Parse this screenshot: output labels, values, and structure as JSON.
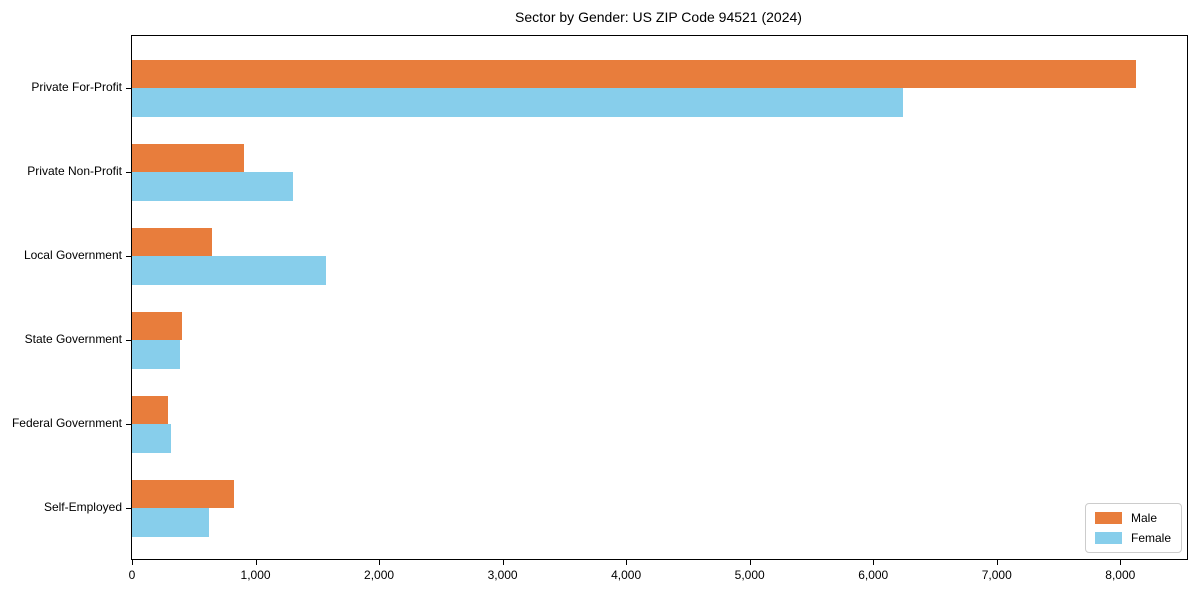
{
  "title": "Sector by Gender: US ZIP Code 94521 (2024)",
  "chart_data": {
    "type": "bar",
    "orientation": "horizontal",
    "title": "Sector by Gender: US ZIP Code 94521 (2024)",
    "categories": [
      "Private For-Profit",
      "Private Non-Profit",
      "Local Government",
      "State Government",
      "Federal Government",
      "Self-Employed"
    ],
    "series": [
      {
        "name": "Male",
        "color": "#e87d3c",
        "values": [
          8130,
          905,
          650,
          405,
          290,
          825
        ]
      },
      {
        "name": "Female",
        "color": "#87ceeb",
        "values": [
          6240,
          1300,
          1570,
          390,
          315,
          620
        ]
      }
    ],
    "xlabel": "",
    "ylabel": "",
    "xlim": [
      0,
      8540
    ],
    "xticks": [
      0,
      1000,
      2000,
      3000,
      4000,
      5000,
      6000,
      7000,
      8000
    ],
    "xtick_labels": [
      "0",
      "1,000",
      "2,000",
      "3,000",
      "4,000",
      "5,000",
      "6,000",
      "7,000",
      "8,000"
    ],
    "grid": false,
    "legend_position": "lower right",
    "legend_entries": [
      "Male",
      "Female"
    ]
  },
  "colors": {
    "male": "#e87d3c",
    "female": "#87ceeb",
    "spine": "#000000",
    "text": "#000000",
    "legend_border": "#cccccc",
    "background": "#ffffff"
  }
}
